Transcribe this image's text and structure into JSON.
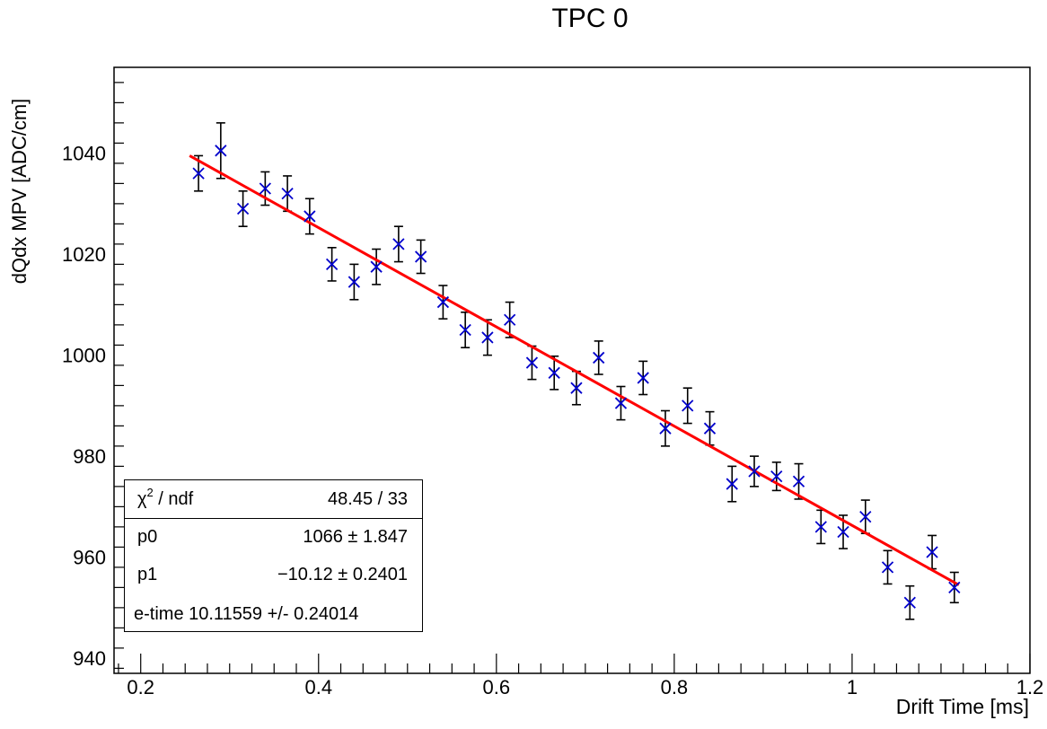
{
  "chart_data": {
    "type": "scatter",
    "title": "TPC 0",
    "xlabel": "Drift Time [ms]",
    "ylabel": "dQdx MPV [ADC/cm]",
    "xlim": [
      0.17,
      1.2
    ],
    "ylim": [
      937,
      1057
    ],
    "xticks": [
      0.2,
      0.4,
      0.6,
      0.8,
      1,
      1.2
    ],
    "xtick_labels": [
      "0.2",
      "0.4",
      "0.6",
      "0.8",
      "1",
      "1.2"
    ],
    "yticks": [
      940,
      960,
      980,
      1000,
      1020,
      1040
    ],
    "ytick_labels": [
      "940",
      "960",
      "980",
      "1000",
      "1020",
      "1040"
    ],
    "grid": false,
    "series": [
      {
        "marker": "x",
        "color": "#0000cc",
        "x": [
          0.265,
          0.29,
          0.315,
          0.34,
          0.365,
          0.39,
          0.415,
          0.44,
          0.465,
          0.49,
          0.515,
          0.54,
          0.565,
          0.59,
          0.615,
          0.64,
          0.665,
          0.69,
          0.715,
          0.74,
          0.765,
          0.79,
          0.815,
          0.84,
          0.865,
          0.89,
          0.915,
          0.94,
          0.965,
          0.99,
          1.015,
          1.04,
          1.065,
          1.09,
          1.115
        ],
        "y": [
          1036,
          1040.5,
          1029,
          1033,
          1032,
          1027.5,
          1018,
          1014.5,
          1017.5,
          1022,
          1019.5,
          1010.5,
          1005,
          1003.5,
          1007,
          998.5,
          996.5,
          993.5,
          999.5,
          990.5,
          995.5,
          985.5,
          990,
          985.5,
          974.5,
          977,
          976,
          975,
          966,
          965,
          968,
          958,
          951,
          961,
          954
        ],
        "yerr": [
          3.5,
          5.5,
          3.5,
          3.3,
          3.5,
          3.5,
          3.3,
          3.5,
          3.5,
          3.5,
          3.3,
          3.3,
          3.5,
          3.5,
          3.5,
          3.3,
          3.3,
          3.3,
          3.3,
          3.3,
          3.3,
          3.5,
          3.5,
          3.3,
          3.5,
          3.0,
          2.8,
          3.5,
          3.3,
          3.3,
          3.3,
          3.3,
          3.3,
          3.3,
          3.0
        ]
      }
    ],
    "fit": {
      "color": "#ff0000",
      "p0": 1066,
      "p1": -10.12,
      "x_range": [
        0.255,
        1.12
      ]
    }
  },
  "stats": {
    "chi2_label": "χ",
    "chi2_sup": "2",
    "chi2_rest": " / ndf",
    "chi2_value": "48.45 / 33",
    "p0_label": "p0",
    "p0_value": "1066 ± 1.847",
    "p1_label": "p1",
    "p1_value": "−10.12 ± 0.2401",
    "etime": "e-time 10.11559 +/- 0.24014"
  }
}
